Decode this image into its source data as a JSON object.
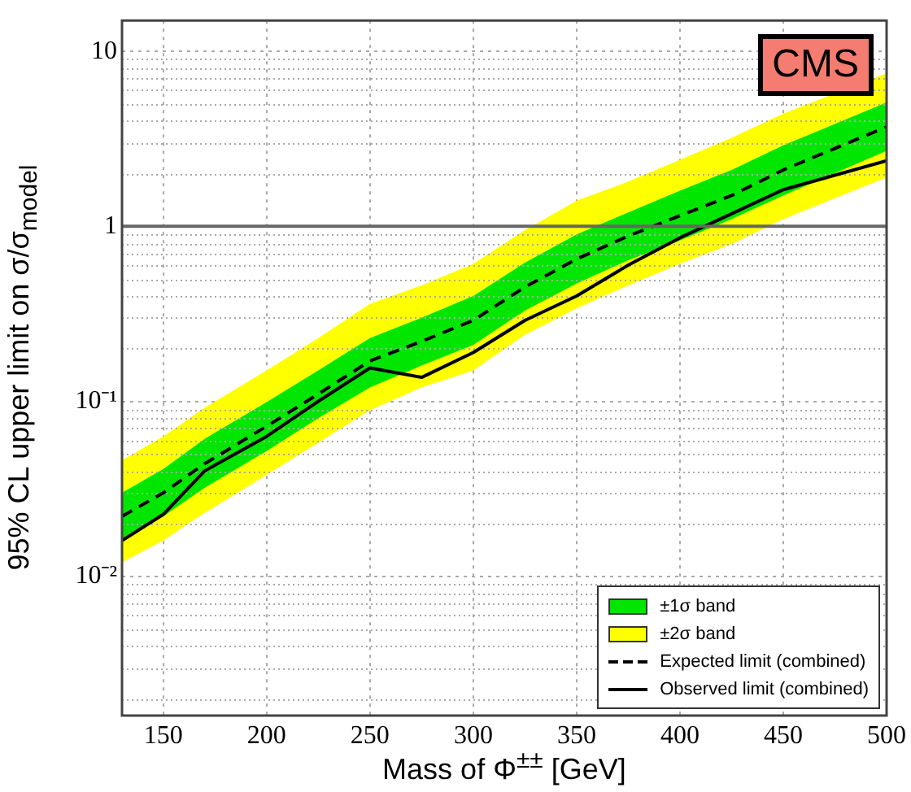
{
  "chart_data": {
    "type": "line",
    "xlabel": "Mass of Φ$^{±±}$ [GeV]",
    "ylabel": "95% CL upper limit on σ/σ$_{model}$",
    "x": [
      130,
      150,
      170,
      200,
      225,
      250,
      275,
      300,
      325,
      350,
      375,
      400,
      425,
      450,
      500
    ],
    "series": [
      {
        "name": "±1σ band",
        "type": "line",
        "color": "#00e600",
        "values": [
          null,
          null,
          null,
          null,
          null,
          null,
          null,
          null,
          null,
          null,
          null,
          null,
          null,
          null,
          null
        ],
        "lower": [
          0.016,
          0.022,
          0.032,
          0.052,
          0.08,
          0.12,
          0.16,
          0.21,
          0.33,
          0.47,
          0.64,
          0.83,
          1.1,
          1.5,
          2.7
        ],
        "upper": [
          0.03,
          0.041,
          0.061,
          0.099,
          0.15,
          0.23,
          0.3,
          0.4,
          0.62,
          0.9,
          1.2,
          1.6,
          2.1,
          2.9,
          5.1
        ]
      },
      {
        "name": "±2σ band",
        "type": "line",
        "color": "#ffff00",
        "values": [
          null,
          null,
          null,
          null,
          null,
          null,
          null,
          null,
          null,
          null,
          null,
          null,
          null,
          null,
          null
        ],
        "lower": [
          0.012,
          0.016,
          0.023,
          0.038,
          0.058,
          0.089,
          0.12,
          0.15,
          0.24,
          0.34,
          0.46,
          0.61,
          0.79,
          1.1,
          1.9
        ],
        "upper": [
          0.046,
          0.063,
          0.092,
          0.15,
          0.23,
          0.36,
          0.46,
          0.61,
          0.95,
          1.4,
          1.8,
          2.4,
          3.2,
          4.4,
          7.5
        ]
      },
      {
        "name": "Expected limit (combined)",
        "type": "line",
        "color": "#000000",
        "line_style": "dashed",
        "values": [
          0.022,
          0.03,
          0.044,
          0.072,
          0.11,
          0.17,
          0.22,
          0.29,
          0.45,
          0.65,
          0.88,
          1.15,
          1.5,
          2.1,
          3.7
        ]
      },
      {
        "name": "Observed limit (combined)",
        "type": "line",
        "color": "#000000",
        "line_style": "solid",
        "values": [
          0.016,
          0.0226,
          0.04,
          0.063,
          0.1,
          0.155,
          0.137,
          0.19,
          0.29,
          0.4,
          0.6,
          0.86,
          1.18,
          1.62,
          2.37
        ]
      }
    ],
    "log": "y",
    "grid": true,
    "legend": "bottom right",
    "marker": "none",
    "xlim": [
      130,
      500
    ],
    "xticks": [
      150,
      200,
      250,
      300,
      350,
      400,
      450,
      500
    ],
    "ylim": [
      0.0016,
      15
    ],
    "yticks": [
      {
        "value": 0.01,
        "label": "10⁻²"
      },
      {
        "value": 0.1,
        "label": "10⁻¹"
      },
      1,
      10
    ],
    "ref_lines": [
      {
        "axis": "y",
        "value": 1,
        "color": "#666666",
        "line_style": "solid"
      }
    ],
    "annotations": [
      "CMS"
    ]
  }
}
